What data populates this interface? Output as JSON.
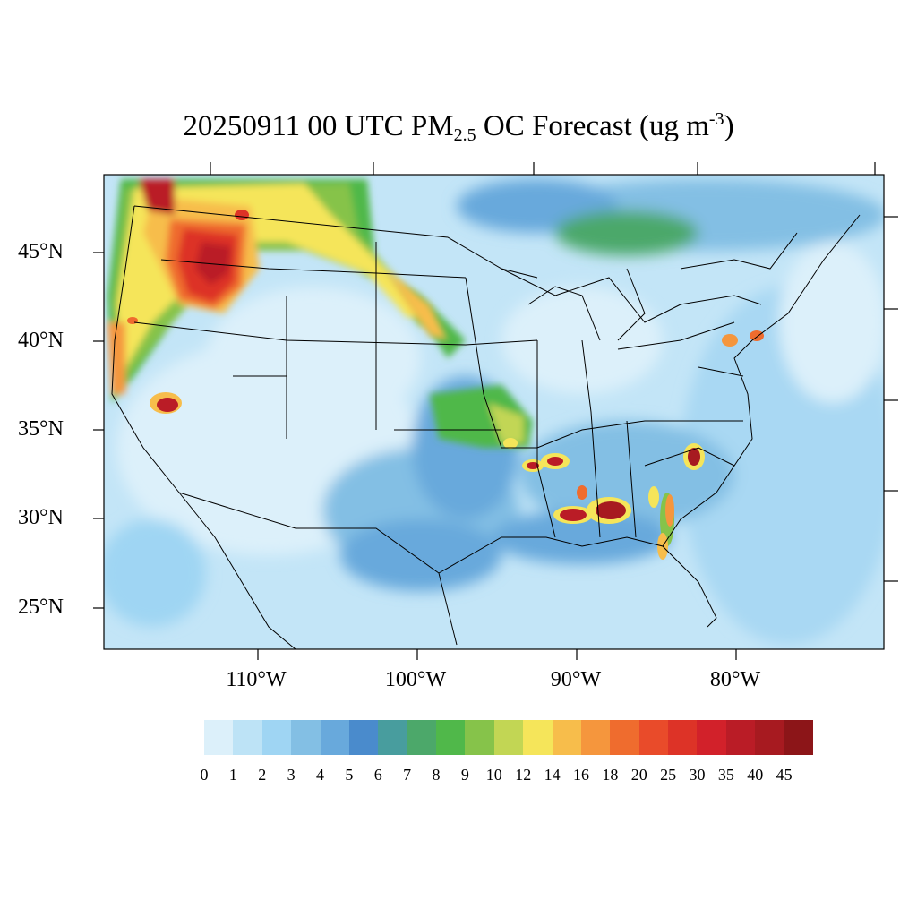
{
  "title": {
    "prefix": "20250911 00 UTC PM",
    "subscript": "2.5",
    "middle": " OC Forecast (ug m",
    "superscript": "-3",
    "suffix": ")"
  },
  "lat_labels": [
    "45°N",
    "40°N",
    "35°N",
    "30°N",
    "25°N"
  ],
  "lon_labels": [
    "110°W",
    "100°W",
    "90°W",
    "80°W"
  ],
  "colorbar": {
    "labels": [
      "0",
      "1",
      "2",
      "3",
      "4",
      "5",
      "6",
      "7",
      "8",
      "9",
      "10",
      "12",
      "14",
      "16",
      "18",
      "20",
      "25",
      "30",
      "35",
      "40",
      "45"
    ],
    "colors": [
      "#dcf0fa",
      "#bde3f6",
      "#9fd5f3",
      "#83bfe4",
      "#68a9dc",
      "#4a8bcc",
      "#489d9e",
      "#4ca86a",
      "#50b84a",
      "#86c34a",
      "#c2d654",
      "#f5e55a",
      "#f7bd4b",
      "#f5963d",
      "#ef6c2e",
      "#e94b2a",
      "#dd3327",
      "#d2212a",
      "#ba1c26",
      "#a71a20",
      "#8c1518"
    ]
  },
  "map": {
    "regions": "CONUS",
    "field": "PM2.5 organic carbon concentration"
  }
}
